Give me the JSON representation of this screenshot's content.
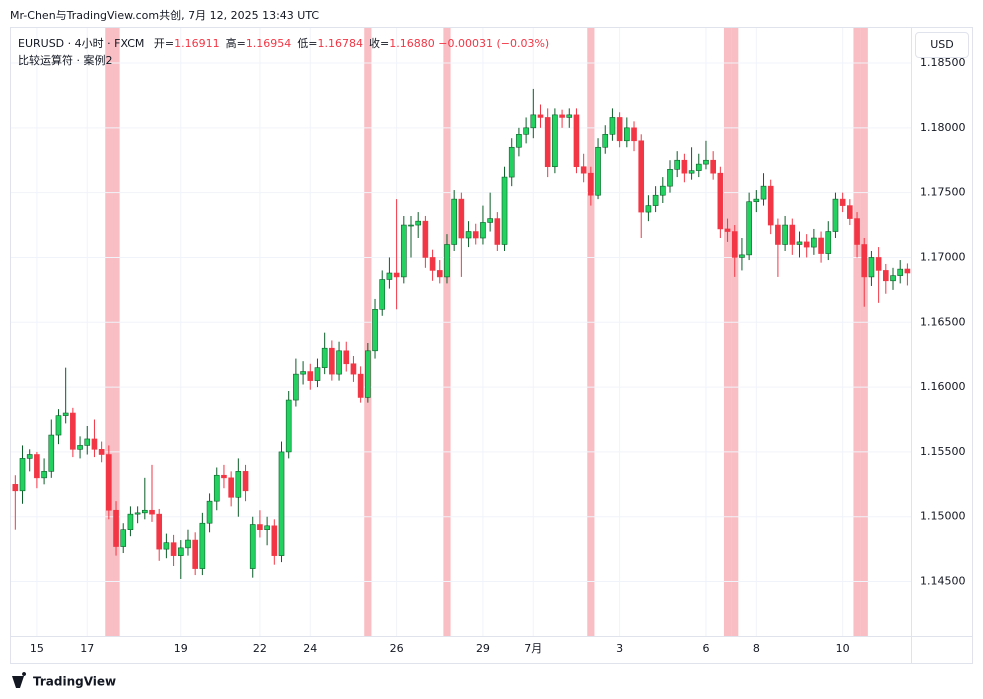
{
  "header": {
    "credit": "Mr-Chen与TradingView.com共创, 7月 12, 2025 13:43 UTC",
    "symbol": "EURUSD · 4小时 · FXCM",
    "ohlc_legend": [
      {
        "label": "开=",
        "value": "1.16911"
      },
      {
        "label": "高=",
        "value": "1.16954"
      },
      {
        "label": "低=",
        "value": "1.16784"
      },
      {
        "label": "收=",
        "value": "1.16880"
      }
    ],
    "change": "−0.00031 (−0.03%)",
    "indicator": "比较运算符 · 案例2",
    "currency": "USD"
  },
  "footer": {
    "brand": "TradingView"
  },
  "chart_data": {
    "type": "candlestick",
    "up_color": "#22d15f",
    "down_color": "#f23645",
    "highlight_color": "#f7a3aa",
    "ylim": [
      1.1408,
      1.1877
    ],
    "yticks": [
      {
        "value": 1.145,
        "label": "1.14500"
      },
      {
        "value": 1.15,
        "label": "1.15000"
      },
      {
        "value": 1.155,
        "label": "1.15500"
      },
      {
        "value": 1.16,
        "label": "1.16000"
      },
      {
        "value": 1.165,
        "label": "1.16500"
      },
      {
        "value": 1.17,
        "label": "1.17000"
      },
      {
        "value": 1.175,
        "label": "1.17500"
      },
      {
        "value": 1.18,
        "label": "1.18000"
      },
      {
        "value": 1.185,
        "label": "1.18500"
      }
    ],
    "xlim": [
      -0.6,
      124.5
    ],
    "xticks": [
      {
        "value": 3,
        "label": "15"
      },
      {
        "value": 10,
        "label": "17"
      },
      {
        "value": 23,
        "label": "19"
      },
      {
        "value": 34,
        "label": "22"
      },
      {
        "value": 41,
        "label": "24"
      },
      {
        "value": 53,
        "label": "26"
      },
      {
        "value": 65,
        "label": "29"
      },
      {
        "value": 72,
        "label": "7月"
      },
      {
        "value": 84,
        "label": "3"
      },
      {
        "value": 96,
        "label": "6"
      },
      {
        "value": 103,
        "label": "8"
      },
      {
        "value": 115,
        "label": "10"
      }
    ],
    "highlight_candles": [
      13,
      14,
      49,
      60,
      80,
      99,
      100,
      117,
      118
    ],
    "ohlc": [
      [
        1.1525,
        1.1532,
        1.149,
        1.152
      ],
      [
        1.152,
        1.1555,
        1.151,
        1.1545
      ],
      [
        1.1545,
        1.1552,
        1.1535,
        1.1548
      ],
      [
        1.1548,
        1.155,
        1.1522,
        1.153
      ],
      [
        1.153,
        1.1545,
        1.1525,
        1.1535
      ],
      [
        1.1535,
        1.1575,
        1.153,
        1.1563
      ],
      [
        1.1563,
        1.1583,
        1.1556,
        1.1578
      ],
      [
        1.1578,
        1.1615,
        1.1572,
        1.158
      ],
      [
        1.158,
        1.1584,
        1.1546,
        1.1552
      ],
      [
        1.1552,
        1.1562,
        1.1545,
        1.1555
      ],
      [
        1.1555,
        1.157,
        1.1548,
        1.156
      ],
      [
        1.156,
        1.1575,
        1.1546,
        1.1552
      ],
      [
        1.1552,
        1.1558,
        1.1542,
        1.1548
      ],
      [
        1.1548,
        1.1555,
        1.1498,
        1.1505
      ],
      [
        1.1505,
        1.1512,
        1.147,
        1.1477
      ],
      [
        1.1477,
        1.1495,
        1.1472,
        1.149
      ],
      [
        1.149,
        1.1508,
        1.1485,
        1.1502
      ],
      [
        1.1502,
        1.1508,
        1.1495,
        1.1503
      ],
      [
        1.1503,
        1.153,
        1.1498,
        1.1505
      ],
      [
        1.1505,
        1.154,
        1.1496,
        1.1502
      ],
      [
        1.1502,
        1.1506,
        1.1466,
        1.1475
      ],
      [
        1.1475,
        1.1487,
        1.1468,
        1.148
      ],
      [
        1.148,
        1.1486,
        1.1462,
        1.147
      ],
      [
        1.147,
        1.1482,
        1.1452,
        1.1476
      ],
      [
        1.1476,
        1.149,
        1.147,
        1.1482
      ],
      [
        1.1482,
        1.1488,
        1.1455,
        1.146
      ],
      [
        1.146,
        1.1503,
        1.1455,
        1.1495
      ],
      [
        1.1495,
        1.1518,
        1.1488,
        1.1512
      ],
      [
        1.1512,
        1.1538,
        1.1505,
        1.1532
      ],
      [
        1.1532,
        1.154,
        1.1522,
        1.153
      ],
      [
        1.153,
        1.1535,
        1.1508,
        1.1515
      ],
      [
        1.1515,
        1.1545,
        1.15,
        1.1535
      ],
      [
        1.1535,
        1.154,
        1.1512,
        1.152
      ],
      [
        1.146,
        1.15,
        1.1453,
        1.1494
      ],
      [
        1.1494,
        1.1505,
        1.1484,
        1.149
      ],
      [
        1.149,
        1.15,
        1.1478,
        1.1493
      ],
      [
        1.1493,
        1.1498,
        1.1463,
        1.147
      ],
      [
        1.147,
        1.1558,
        1.1465,
        1.155
      ],
      [
        1.155,
        1.1597,
        1.1545,
        1.159
      ],
      [
        1.159,
        1.1622,
        1.1585,
        1.161
      ],
      [
        1.161,
        1.162,
        1.1602,
        1.1612
      ],
      [
        1.1612,
        1.1618,
        1.1598,
        1.1605
      ],
      [
        1.1605,
        1.1622,
        1.16,
        1.1615
      ],
      [
        1.1615,
        1.1642,
        1.161,
        1.163
      ],
      [
        1.163,
        1.1636,
        1.1605,
        1.161
      ],
      [
        1.161,
        1.1635,
        1.1605,
        1.1628
      ],
      [
        1.1628,
        1.1635,
        1.1612,
        1.1618
      ],
      [
        1.1618,
        1.1624,
        1.1604,
        1.161
      ],
      [
        1.161,
        1.1616,
        1.1588,
        1.1592
      ],
      [
        1.1592,
        1.1634,
        1.1588,
        1.1628
      ],
      [
        1.1628,
        1.1668,
        1.1622,
        1.166
      ],
      [
        1.166,
        1.169,
        1.1655,
        1.1683
      ],
      [
        1.1683,
        1.17,
        1.1676,
        1.1688
      ],
      [
        1.1688,
        1.1745,
        1.166,
        1.1685
      ],
      [
        1.1685,
        1.1732,
        1.168,
        1.1725
      ],
      [
        1.1725,
        1.1732,
        1.17,
        1.1725
      ],
      [
        1.1725,
        1.1735,
        1.1715,
        1.1728
      ],
      [
        1.1728,
        1.1732,
        1.1692,
        1.17
      ],
      [
        1.17,
        1.1706,
        1.1682,
        1.169
      ],
      [
        1.169,
        1.1698,
        1.168,
        1.1685
      ],
      [
        1.1685,
        1.1718,
        1.168,
        1.171
      ],
      [
        1.171,
        1.1752,
        1.1705,
        1.1745
      ],
      [
        1.1745,
        1.175,
        1.1685,
        1.1715
      ],
      [
        1.1715,
        1.1728,
        1.1708,
        1.172
      ],
      [
        1.172,
        1.1726,
        1.171,
        1.1715
      ],
      [
        1.1715,
        1.174,
        1.171,
        1.1727
      ],
      [
        1.1727,
        1.175,
        1.172,
        1.173
      ],
      [
        1.173,
        1.1735,
        1.1705,
        1.171
      ],
      [
        1.171,
        1.177,
        1.1705,
        1.1762
      ],
      [
        1.1762,
        1.1792,
        1.1755,
        1.1785
      ],
      [
        1.1785,
        1.18,
        1.1778,
        1.1795
      ],
      [
        1.1795,
        1.1808,
        1.1788,
        1.18
      ],
      [
        1.18,
        1.183,
        1.1792,
        1.181
      ],
      [
        1.181,
        1.1818,
        1.18,
        1.1808
      ],
      [
        1.1808,
        1.1815,
        1.1762,
        1.177
      ],
      [
        1.177,
        1.1815,
        1.1765,
        1.181
      ],
      [
        1.181,
        1.1814,
        1.18,
        1.1808
      ],
      [
        1.1808,
        1.1815,
        1.18,
        1.181
      ],
      [
        1.181,
        1.1815,
        1.1765,
        1.177
      ],
      [
        1.177,
        1.178,
        1.1758,
        1.1765
      ],
      [
        1.1765,
        1.177,
        1.174,
        1.1748
      ],
      [
        1.1748,
        1.1792,
        1.1745,
        1.1785
      ],
      [
        1.1785,
        1.1802,
        1.178,
        1.1795
      ],
      [
        1.1795,
        1.1815,
        1.179,
        1.1808
      ],
      [
        1.1808,
        1.1812,
        1.1785,
        1.179
      ],
      [
        1.179,
        1.1808,
        1.1785,
        1.18
      ],
      [
        1.18,
        1.1805,
        1.1782,
        1.179
      ],
      [
        1.179,
        1.1795,
        1.1715,
        1.1735
      ],
      [
        1.1735,
        1.1748,
        1.1728,
        1.174
      ],
      [
        1.174,
        1.1755,
        1.1735,
        1.1748
      ],
      [
        1.1748,
        1.1762,
        1.1742,
        1.1755
      ],
      [
        1.1755,
        1.1775,
        1.175,
        1.1768
      ],
      [
        1.1768,
        1.1782,
        1.1762,
        1.1775
      ],
      [
        1.1775,
        1.178,
        1.1758,
        1.1765
      ],
      [
        1.1765,
        1.1785,
        1.176,
        1.1767
      ],
      [
        1.1767,
        1.178,
        1.1762,
        1.1772
      ],
      [
        1.1772,
        1.179,
        1.1768,
        1.1775
      ],
      [
        1.1775,
        1.1782,
        1.176,
        1.1765
      ],
      [
        1.1765,
        1.177,
        1.1715,
        1.1722
      ],
      [
        1.1722,
        1.173,
        1.1712,
        1.172
      ],
      [
        1.172,
        1.1725,
        1.1685,
        1.17
      ],
      [
        1.17,
        1.1715,
        1.169,
        1.1702
      ],
      [
        1.1702,
        1.175,
        1.1698,
        1.1743
      ],
      [
        1.1743,
        1.1752,
        1.1735,
        1.1745
      ],
      [
        1.1745,
        1.1765,
        1.174,
        1.1755
      ],
      [
        1.1755,
        1.176,
        1.1718,
        1.1725
      ],
      [
        1.1725,
        1.173,
        1.1685,
        1.171
      ],
      [
        1.171,
        1.1732,
        1.1705,
        1.1725
      ],
      [
        1.1725,
        1.173,
        1.1702,
        1.171
      ],
      [
        1.171,
        1.172,
        1.17,
        1.1712
      ],
      [
        1.1712,
        1.1718,
        1.17,
        1.1708
      ],
      [
        1.1708,
        1.1722,
        1.1702,
        1.1715
      ],
      [
        1.1715,
        1.172,
        1.1696,
        1.1703
      ],
      [
        1.1703,
        1.1728,
        1.1698,
        1.172
      ],
      [
        1.172,
        1.175,
        1.1715,
        1.1745
      ],
      [
        1.1745,
        1.175,
        1.1735,
        1.174
      ],
      [
        1.174,
        1.1745,
        1.1725,
        1.173
      ],
      [
        1.173,
        1.1735,
        1.17,
        1.171
      ],
      [
        1.171,
        1.1715,
        1.1662,
        1.1685
      ],
      [
        1.1685,
        1.1705,
        1.1678,
        1.17
      ],
      [
        1.17,
        1.1708,
        1.1665,
        1.169
      ],
      [
        1.169,
        1.1695,
        1.1672,
        1.1682
      ],
      [
        1.1682,
        1.1692,
        1.1675,
        1.1686
      ],
      [
        1.1686,
        1.1698,
        1.168,
        1.1691
      ],
      [
        1.16911,
        1.16954,
        1.16784,
        1.1688
      ]
    ]
  }
}
